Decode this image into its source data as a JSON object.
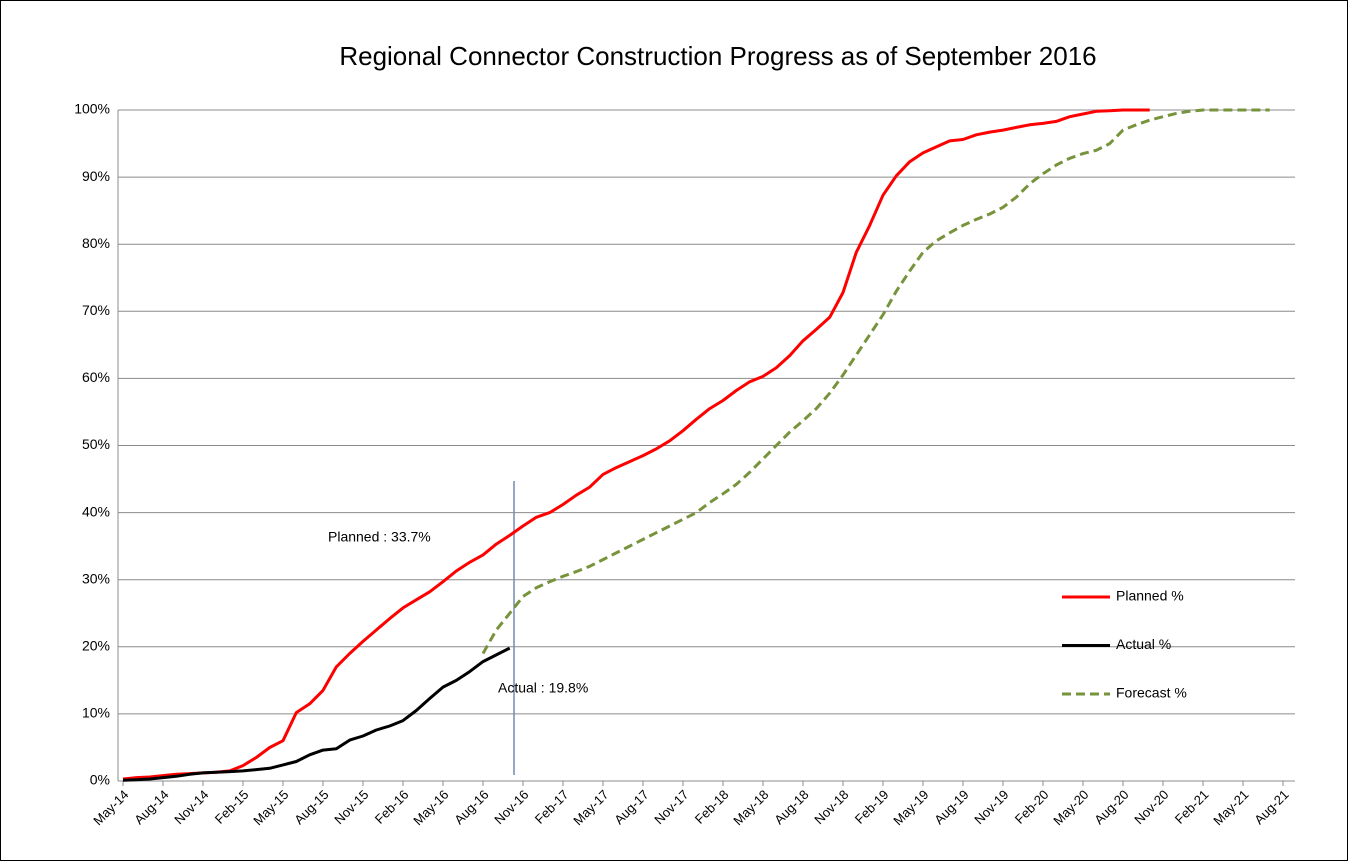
{
  "chart_data": {
    "type": "line",
    "title": "Regional Connector Construction Progress as of September 2016",
    "categories": [
      "May-14",
      null,
      null,
      "Aug-14",
      null,
      null,
      "Nov-14",
      null,
      null,
      "Feb-15",
      null,
      null,
      "May-15",
      null,
      null,
      "Aug-15",
      null,
      null,
      "Nov-15",
      null,
      null,
      "Feb-16",
      null,
      null,
      "May-16",
      null,
      null,
      "Aug-16",
      null,
      null,
      "Nov-16",
      null,
      null,
      "Feb-17",
      null,
      null,
      "May-17",
      null,
      null,
      "Aug-17",
      null,
      null,
      "Nov-17",
      null,
      null,
      "Feb-18",
      null,
      null,
      "May-18",
      null,
      null,
      "Aug-18",
      null,
      null,
      "Nov-18",
      null,
      null,
      "Feb-19",
      null,
      null,
      "May-19",
      null,
      null,
      "Aug-19",
      null,
      null,
      "Nov-19",
      null,
      null,
      "Feb-20",
      null,
      null,
      "May-20",
      null,
      null,
      "Aug-20",
      null,
      null,
      "Nov-20",
      null,
      null,
      "Feb-21",
      null,
      null,
      "May-21",
      null,
      null,
      "Aug-21"
    ],
    "series": [
      {
        "name": "Planned %",
        "color": "#ff0000",
        "values": [
          0.3,
          0.5,
          0.6,
          0.8,
          1.0,
          1.1,
          1.2,
          1.3,
          1.5,
          2.3,
          3.5,
          5.0,
          6.0,
          10.2,
          11.5,
          13.5,
          17.0,
          19.0,
          20.8,
          22.5,
          24.2,
          25.8,
          27.0,
          28.2,
          29.7,
          31.3,
          32.6,
          33.7,
          35.3,
          36.6,
          38.0,
          39.3,
          40.0,
          41.2,
          42.6,
          43.8,
          45.7,
          46.7,
          47.6,
          48.5,
          49.5,
          50.7,
          52.2,
          53.9,
          55.5,
          56.7,
          58.2,
          59.5,
          60.3,
          61.6,
          63.4,
          65.6,
          67.3,
          69.1,
          72.8,
          78.8,
          82.8,
          87.3,
          90.2,
          92.3,
          93.6,
          94.5,
          95.4,
          95.6,
          96.3,
          96.7,
          97.0,
          97.4,
          97.8,
          98.0,
          98.3,
          99.0,
          99.4,
          99.8,
          99.9,
          100,
          100,
          100,
          null,
          null,
          null,
          null,
          null,
          null,
          null,
          null,
          null,
          null
        ]
      },
      {
        "name": "Actual %",
        "color": "#000000",
        "values": [
          0.1,
          0.2,
          0.3,
          0.5,
          0.7,
          1.0,
          1.2,
          1.3,
          1.4,
          1.5,
          1.7,
          1.9,
          2.4,
          2.9,
          3.9,
          4.6,
          4.8,
          6.1,
          6.7,
          7.6,
          8.2,
          9.0,
          10.5,
          12.3,
          14.0,
          15.0,
          16.3,
          17.8,
          18.8,
          19.8,
          null,
          null,
          null,
          null,
          null,
          null,
          null,
          null,
          null,
          null,
          null,
          null,
          null,
          null,
          null,
          null,
          null,
          null,
          null,
          null,
          null,
          null,
          null,
          null,
          null,
          null,
          null,
          null,
          null,
          null,
          null,
          null,
          null,
          null,
          null,
          null,
          null,
          null,
          null,
          null,
          null,
          null,
          null,
          null,
          null,
          null,
          null,
          null,
          null,
          null,
          null,
          null,
          null,
          null,
          null,
          null,
          null,
          null
        ]
      },
      {
        "name": "Forecast %",
        "color": "#77933c",
        "dashed": true,
        "values": [
          null,
          null,
          null,
          null,
          null,
          null,
          null,
          null,
          null,
          null,
          null,
          null,
          null,
          null,
          null,
          null,
          null,
          null,
          null,
          null,
          null,
          null,
          null,
          null,
          null,
          null,
          null,
          19.0,
          22.5,
          25.0,
          27.5,
          28.8,
          29.7,
          30.5,
          31.2,
          32.0,
          33.0,
          34.0,
          35.0,
          36.0,
          37.0,
          38.0,
          39.0,
          40.0,
          41.5,
          42.8,
          44.2,
          46.0,
          48.0,
          50.0,
          52.0,
          53.7,
          55.5,
          57.8,
          60.5,
          63.5,
          66.5,
          69.5,
          73.0,
          76.0,
          78.8,
          80.5,
          81.7,
          82.8,
          83.7,
          84.5,
          85.5,
          87.0,
          89.0,
          90.5,
          91.8,
          92.8,
          93.5,
          94.0,
          95.0,
          97.0,
          97.8,
          98.5,
          99.0,
          99.5,
          99.8,
          100,
          100,
          100,
          100,
          100,
          100,
          null
        ]
      }
    ],
    "ylim": [
      0,
      100
    ],
    "yticks": [
      {
        "value": 0,
        "label": "0%"
      },
      {
        "value": 10,
        "label": "10%"
      },
      {
        "value": 20,
        "label": "20%"
      },
      {
        "value": 30,
        "label": "30%"
      },
      {
        "value": 40,
        "label": "40%"
      },
      {
        "value": 50,
        "label": "50%"
      },
      {
        "value": 60,
        "label": "60%"
      },
      {
        "value": 70,
        "label": "70%"
      },
      {
        "value": 80,
        "label": "80%"
      },
      {
        "value": 90,
        "label": "90%"
      },
      {
        "value": 100,
        "label": "100%"
      }
    ],
    "grid": true,
    "legend": "right",
    "annotations": [
      "Planned : 33.7%",
      "Actual : 19.8%"
    ]
  }
}
